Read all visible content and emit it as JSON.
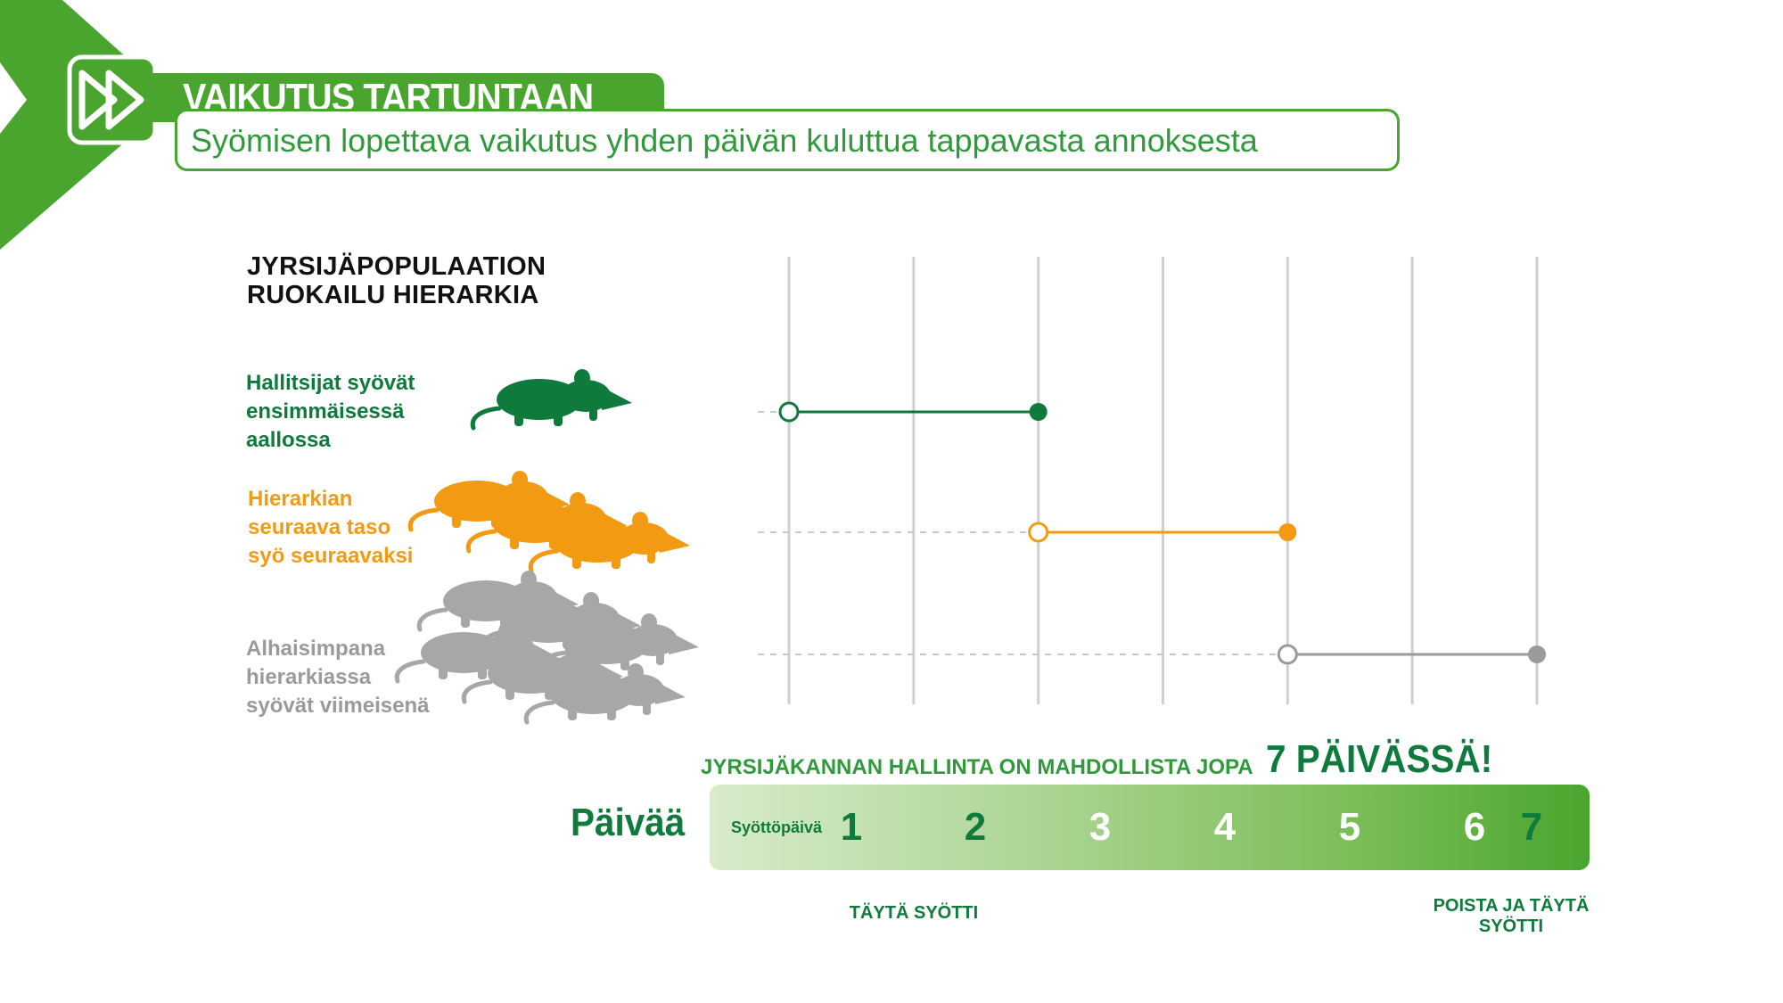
{
  "header": {
    "title": "VAIKUTUS TARTUNTAAN",
    "subtitle": "Syömisen lopettava vaikutus yhden päivän kuluttua tappavasta annoksesta",
    "accent_color": "#4aa52e"
  },
  "hierarchy": {
    "heading_lines": [
      "JYRSIJÄPOPULAATION",
      "RUOKAILU HIERARKIA"
    ],
    "tiers": [
      {
        "lines": [
          "Hallitsijat syövät",
          "ensimmäisessä",
          "aallossa"
        ],
        "color": "#0e7a3c",
        "rat_count": 1,
        "icon": "rat-icon"
      },
      {
        "lines": [
          "Hierarkian",
          "seuraava taso",
          "syö seuraavaksi"
        ],
        "color": "#f39a13",
        "rat_count": 3,
        "icon": "rat-icon"
      },
      {
        "lines": [
          "Alhaisimpana",
          "hierarkiassa",
          "syövät viimeisenä"
        ],
        "color": "#9a9a9a",
        "rat_count": 6,
        "icon": "rat-icon"
      }
    ]
  },
  "chart_data": {
    "type": "timeline",
    "x_domain": [
      1,
      7
    ],
    "x_ticks": [
      1,
      2,
      3,
      4,
      5,
      6,
      7
    ],
    "grid": true,
    "series": [
      {
        "start": 1,
        "end": 3,
        "color": "#0e7a3c"
      },
      {
        "start": 3,
        "end": 5,
        "color": "#f39a13"
      },
      {
        "start": 5,
        "end": 7,
        "color": "#9a9a9a"
      }
    ]
  },
  "control": {
    "text": "JYRSIJÄKANNAN HALLINTA ON MAHDOLLISTA JOPA",
    "highlight": "7 PÄIVÄSSÄ!"
  },
  "day_bar": {
    "label": "Päivää",
    "feed_day_label": "Syöttöpäivä",
    "days": [
      {
        "n": "1",
        "color": "#0e7a3c"
      },
      {
        "n": "2",
        "color": "#0e7a3c"
      },
      {
        "n": "3",
        "color": "#ffffff"
      },
      {
        "n": "4",
        "color": "#ffffff"
      },
      {
        "n": "5",
        "color": "#ffffff"
      },
      {
        "n": "6",
        "color": "#ffffff"
      },
      {
        "n": "7",
        "color": "#0e7a3c"
      }
    ]
  },
  "notes": {
    "fill": "TÄYTÄ SYÖTTI",
    "remove_lines": [
      "POISTA JA TÄYTÄ",
      "SYÖTTI"
    ]
  }
}
